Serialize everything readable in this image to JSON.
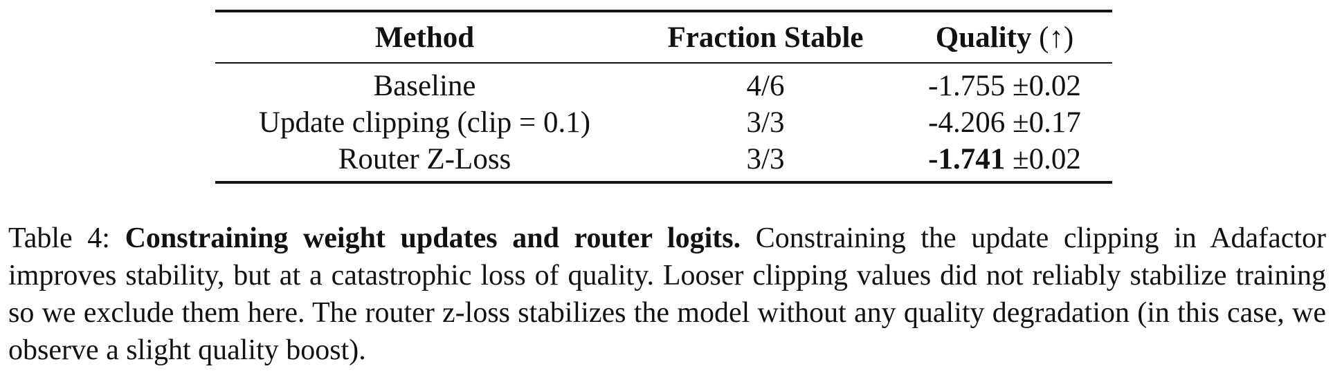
{
  "table": {
    "headers": {
      "method": "Method",
      "fraction_stable": "Fraction Stable",
      "quality": "Quality",
      "quality_arrow": "(↑)"
    },
    "rows": [
      {
        "method": "Baseline",
        "fraction_stable": "4/6",
        "quality_value": "-1.755",
        "quality_err": "±0.02",
        "best": false
      },
      {
        "method": "Update clipping (clip = 0.1)",
        "fraction_stable": "3/3",
        "quality_value": "-4.206",
        "quality_err": "±0.17",
        "best": false
      },
      {
        "method": "Router Z-Loss",
        "fraction_stable": "3/3",
        "quality_value": "-1.741",
        "quality_err": "±0.02",
        "best": true
      }
    ]
  },
  "caption": {
    "label": "Table 4:",
    "title": "Constraining weight updates and router logits.",
    "body": "Constraining the update clipping in Adafactor improves stability, but at a catastrophic loss of quality. Looser clipping values did not reliably stabilize training so we exclude them here. The router z-loss stabilizes the model without any quality degradation (in this case, we observe a slight quality boost)."
  }
}
